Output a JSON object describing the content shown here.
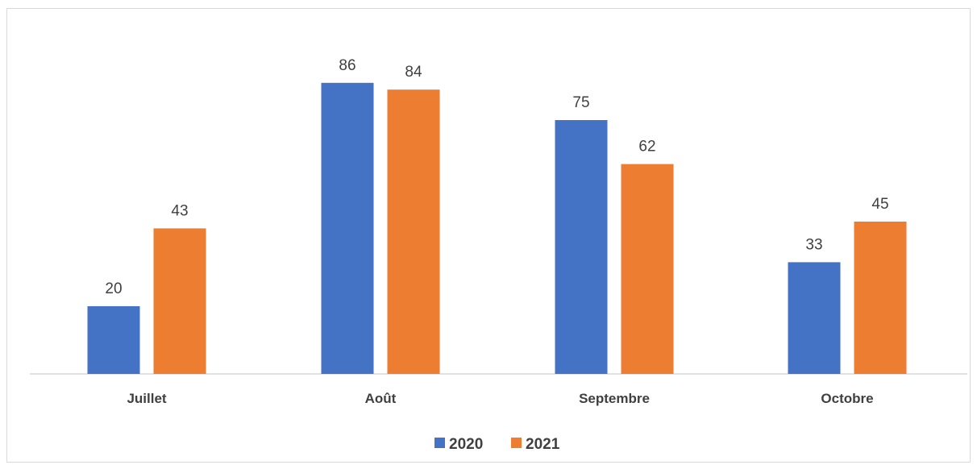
{
  "chart_data": {
    "type": "bar",
    "title": "",
    "xlabel": "",
    "ylabel": "",
    "categories": [
      "Juillet",
      "Août",
      "Septembre",
      "Octobre"
    ],
    "series": [
      {
        "name": "2020",
        "values": [
          20,
          86,
          75,
          33
        ],
        "color": "#4472C4"
      },
      {
        "name": "2021",
        "values": [
          43,
          84,
          62,
          45
        ],
        "color": "#ED7D31"
      }
    ],
    "ylim": [
      0,
      100
    ],
    "grid": false,
    "y_axis_visible": false,
    "data_labels": true,
    "legend_position": "bottom"
  }
}
